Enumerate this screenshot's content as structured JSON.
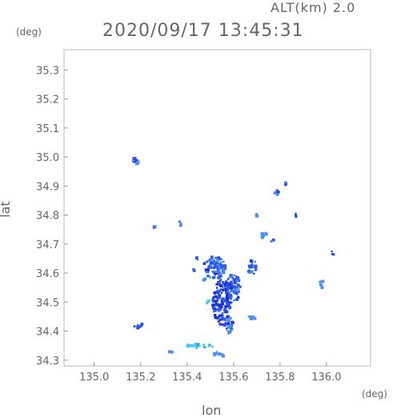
{
  "header": {
    "altitude": "ALT(km)  2.0",
    "timestamp": "2020/09/17  13:45:31"
  },
  "axes": {
    "y_unit": "(deg)",
    "x_unit": "(deg)",
    "x_title": "lon",
    "y_title": "lat"
  },
  "chart_data": {
    "type": "heatmap",
    "xlabel": "lon",
    "ylabel": "lat",
    "xlim": [
      134.87,
      136.19
    ],
    "ylim": [
      34.28,
      35.37
    ],
    "x_ticks": [
      {
        "value": 135.0,
        "label": "135.0"
      },
      {
        "value": 135.2,
        "label": "135.2"
      },
      {
        "value": 135.4,
        "label": "135.4"
      },
      {
        "value": 135.6,
        "label": "135.6"
      },
      {
        "value": 135.8,
        "label": "135.8"
      },
      {
        "value": 136.0,
        "label": "136.0"
      }
    ],
    "y_ticks": [
      {
        "value": 34.3,
        "label": "34.3"
      },
      {
        "value": 34.4,
        "label": "34.4"
      },
      {
        "value": 34.5,
        "label": "34.5"
      },
      {
        "value": 34.6,
        "label": "34.6"
      },
      {
        "value": 34.7,
        "label": "34.7"
      },
      {
        "value": 34.8,
        "label": "34.8"
      },
      {
        "value": 34.9,
        "label": "34.9"
      },
      {
        "value": 35.0,
        "label": "35.0"
      },
      {
        "value": 35.1,
        "label": "35.1"
      },
      {
        "value": 35.2,
        "label": "35.2"
      },
      {
        "value": 35.3,
        "label": "35.3"
      }
    ],
    "echo_colors": {
      "weak": "#4a90f0",
      "moderate": "#2f55e8",
      "strong": "#1a2fd0",
      "light": "#44c8f0"
    },
    "echoes": [
      {
        "lon": 135.18,
        "lat": 34.99,
        "rx": 0.018,
        "ry": 0.015,
        "level": "moderate"
      },
      {
        "lon": 135.19,
        "lat": 34.42,
        "rx": 0.02,
        "ry": 0.01,
        "level": "moderate"
      },
      {
        "lon": 135.54,
        "lat": 34.32,
        "rx": 0.025,
        "ry": 0.01,
        "level": "weak"
      },
      {
        "lon": 135.46,
        "lat": 34.35,
        "rx": 0.06,
        "ry": 0.008,
        "level": "light"
      },
      {
        "lon": 135.33,
        "lat": 34.33,
        "rx": 0.008,
        "ry": 0.004,
        "level": "moderate"
      },
      {
        "lon": 135.55,
        "lat": 34.5,
        "rx": 0.04,
        "ry": 0.08,
        "level": "strong"
      },
      {
        "lon": 135.52,
        "lat": 34.62,
        "rx": 0.05,
        "ry": 0.04,
        "level": "moderate"
      },
      {
        "lon": 135.6,
        "lat": 34.55,
        "rx": 0.03,
        "ry": 0.05,
        "level": "moderate"
      },
      {
        "lon": 135.58,
        "lat": 34.42,
        "rx": 0.02,
        "ry": 0.03,
        "level": "moderate"
      },
      {
        "lon": 135.68,
        "lat": 34.45,
        "rx": 0.015,
        "ry": 0.012,
        "level": "weak"
      },
      {
        "lon": 135.49,
        "lat": 34.5,
        "rx": 0.008,
        "ry": 0.005,
        "level": "light"
      },
      {
        "lon": 135.44,
        "lat": 34.65,
        "rx": 0.01,
        "ry": 0.005,
        "level": "moderate"
      },
      {
        "lon": 135.47,
        "lat": 34.58,
        "rx": 0.008,
        "ry": 0.006,
        "level": "weak"
      },
      {
        "lon": 135.68,
        "lat": 34.62,
        "rx": 0.02,
        "ry": 0.03,
        "level": "moderate"
      },
      {
        "lon": 135.73,
        "lat": 34.73,
        "rx": 0.015,
        "ry": 0.012,
        "level": "weak"
      },
      {
        "lon": 135.77,
        "lat": 34.71,
        "rx": 0.008,
        "ry": 0.006,
        "level": "moderate"
      },
      {
        "lon": 135.79,
        "lat": 34.88,
        "rx": 0.012,
        "ry": 0.01,
        "level": "moderate"
      },
      {
        "lon": 135.82,
        "lat": 34.91,
        "rx": 0.006,
        "ry": 0.012,
        "level": "moderate"
      },
      {
        "lon": 135.98,
        "lat": 34.56,
        "rx": 0.015,
        "ry": 0.012,
        "level": "weak"
      },
      {
        "lon": 136.03,
        "lat": 34.67,
        "rx": 0.008,
        "ry": 0.008,
        "level": "moderate"
      },
      {
        "lon": 135.37,
        "lat": 34.77,
        "rx": 0.004,
        "ry": 0.008,
        "level": "moderate"
      },
      {
        "lon": 135.26,
        "lat": 34.76,
        "rx": 0.004,
        "ry": 0.003,
        "level": "moderate"
      },
      {
        "lon": 135.87,
        "lat": 34.8,
        "rx": 0.004,
        "ry": 0.006,
        "level": "moderate"
      },
      {
        "lon": 135.7,
        "lat": 34.8,
        "rx": 0.003,
        "ry": 0.006,
        "level": "weak"
      },
      {
        "lon": 135.43,
        "lat": 34.61,
        "rx": 0.004,
        "ry": 0.004,
        "level": "moderate"
      }
    ]
  }
}
